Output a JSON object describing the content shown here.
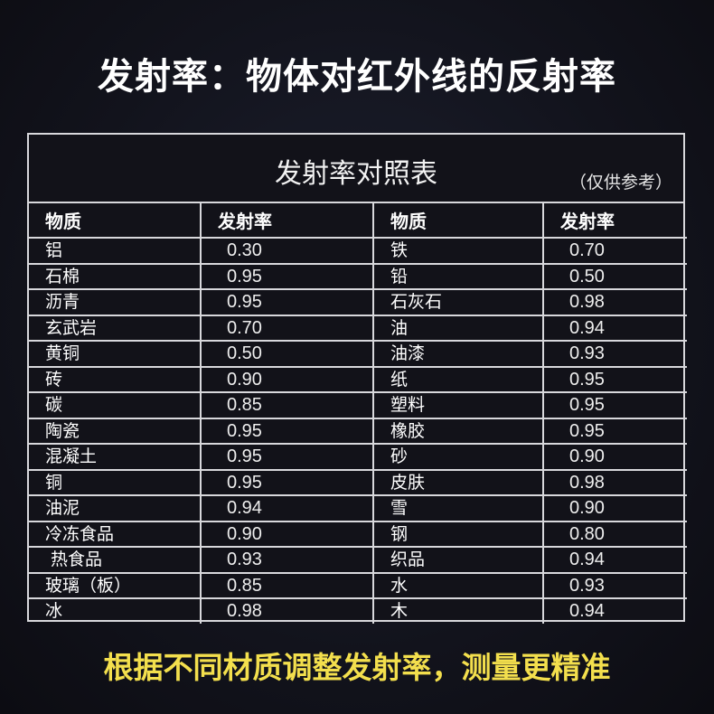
{
  "title": "发射率：物体对红外线的反射率",
  "table": {
    "caption": "发射率对照表",
    "note": "（仅供参考）",
    "headers": [
      "物质",
      "发射率",
      "物质",
      "发射率"
    ],
    "rows": [
      [
        "铝",
        "0.30",
        "铁",
        "0.70"
      ],
      [
        "石棉",
        "0.95",
        "铅",
        "0.50"
      ],
      [
        "沥青",
        "0.95",
        "石灰石",
        "0.98"
      ],
      [
        "玄武岩",
        "0.70",
        "油",
        "0.94"
      ],
      [
        "黄铜",
        "0.50",
        "油漆",
        "0.93"
      ],
      [
        "砖",
        "0.90",
        "纸",
        "0.95"
      ],
      [
        "碳",
        "0.85",
        "塑料",
        "0.95"
      ],
      [
        "陶瓷",
        "0.95",
        "橡胶",
        "0.95"
      ],
      [
        "混凝土",
        "0.95",
        "砂",
        "0.90"
      ],
      [
        "铜",
        "0.95",
        "皮肤",
        "0.98"
      ],
      [
        "油泥",
        "0.94",
        "雪",
        "0.90"
      ],
      [
        "冷冻食品",
        "0.90",
        "钢",
        "0.80"
      ],
      [
        " 热食品",
        "0.93",
        "织品",
        "0.94"
      ],
      [
        "玻璃（板）",
        "0.85",
        "水",
        "0.93"
      ],
      [
        "冰",
        "0.98",
        "木",
        "0.94"
      ]
    ]
  },
  "footer": "根据不同材质调整发射率，测量更精准",
  "colors": {
    "background": "#12131c",
    "footer_text": "#f3df4d",
    "grid": "#d8d8dc"
  }
}
